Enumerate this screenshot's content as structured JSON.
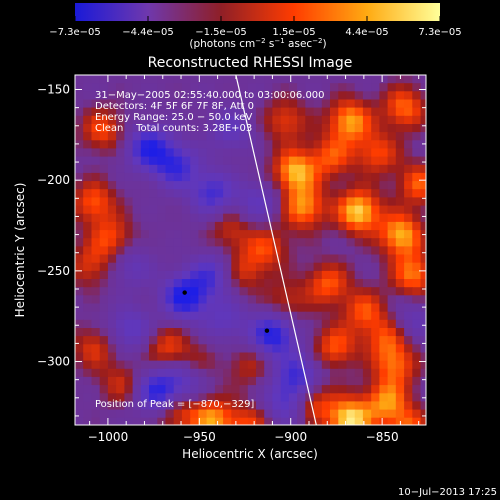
{
  "chart_data": {
    "type": "heatmap",
    "title": "Reconstructed RHESSI Image",
    "xlabel": "Heliocentric X (arcsec)",
    "ylabel": "Heliocentric Y (arcsec)",
    "xlim": [
      -1018,
      -826
    ],
    "ylim": [
      -335,
      -142
    ],
    "x_ticks": [
      -1000,
      -950,
      -900,
      -850
    ],
    "x_tick_labels": [
      "−1000",
      "−950",
      "−900",
      "−850"
    ],
    "y_ticks": [
      -150,
      -200,
      -250,
      -300
    ],
    "y_tick_labels": [
      "−150",
      "−200",
      "−250",
      "−300"
    ],
    "colorbar": {
      "range": [
        -7.3e-05,
        7.3e-05
      ],
      "tick_labels": [
        "−7.3e−05",
        "−4.4e−05",
        "−1.5e−05",
        "1.5e−05",
        "4.4e−05",
        "7.3e−05"
      ],
      "units_main": "(photons cm",
      "units_exp1": "−2",
      "units_mid": " s",
      "units_exp2": "−1",
      "units_end": " asec",
      "units_exp3": "−2",
      "units_close": ")",
      "colors": [
        "#1a1ad8",
        "#6f38ad",
        "#8f1f27",
        "#ff3c00",
        "#ffaa12",
        "#ffff9a"
      ]
    },
    "info_lines": [
      "31−May−2005 02:55:40.000 to 03:00:06.000",
      "Detectors: 4F 5F 6F 7F 8F, Att 0",
      "Energy Range: 25.0 − 50.0 keV",
      "Clean    Total counts: 3.28E+03"
    ],
    "peak_label": "Position of Peak = [−870,−329]",
    "peak": [
      -870,
      -329
    ],
    "limb_line": [
      [
        -930,
        -142
      ],
      [
        -886,
        -335
      ]
    ],
    "markers": [
      [
        -958,
        -262
      ],
      [
        -913,
        -283
      ]
    ],
    "blobs": [
      {
        "x": -865,
        "y": -215,
        "v": 0.95
      },
      {
        "x": -842,
        "y": -228,
        "v": 0.85
      },
      {
        "x": -835,
        "y": -250,
        "v": 0.7
      },
      {
        "x": -900,
        "y": -193,
        "v": 0.85
      },
      {
        "x": -895,
        "y": -213,
        "v": 0.75
      },
      {
        "x": -870,
        "y": -165,
        "v": 0.8
      },
      {
        "x": -880,
        "y": -185,
        "v": 0.55
      },
      {
        "x": -840,
        "y": -158,
        "v": 0.65
      },
      {
        "x": -855,
        "y": -183,
        "v": 0.55
      },
      {
        "x": -832,
        "y": -200,
        "v": 0.6
      },
      {
        "x": -882,
        "y": -255,
        "v": 0.6
      },
      {
        "x": -862,
        "y": -270,
        "v": 0.55
      },
      {
        "x": -878,
        "y": -290,
        "v": 0.6
      },
      {
        "x": -845,
        "y": -300,
        "v": 0.6
      },
      {
        "x": -850,
        "y": -285,
        "v": 0.5
      },
      {
        "x": -870,
        "y": -330,
        "v": 1.0
      },
      {
        "x": -850,
        "y": -320,
        "v": 0.7
      },
      {
        "x": -890,
        "y": -320,
        "v": 0.55
      },
      {
        "x": -838,
        "y": -335,
        "v": 0.6
      },
      {
        "x": -945,
        "y": -330,
        "v": 0.75
      },
      {
        "x": -965,
        "y": -325,
        "v": 0.55
      },
      {
        "x": -925,
        "y": -333,
        "v": 0.5
      },
      {
        "x": -1005,
        "y": -170,
        "v": 0.55
      },
      {
        "x": -1010,
        "y": -210,
        "v": 0.6
      },
      {
        "x": -1000,
        "y": -230,
        "v": 0.55
      },
      {
        "x": -1012,
        "y": -245,
        "v": 0.45
      },
      {
        "x": -1010,
        "y": -290,
        "v": 0.45
      },
      {
        "x": -995,
        "y": -310,
        "v": 0.4
      },
      {
        "x": -915,
        "y": -235,
        "v": 0.5
      },
      {
        "x": -928,
        "y": -248,
        "v": 0.45
      },
      {
        "x": -935,
        "y": -225,
        "v": 0.4
      },
      {
        "x": -905,
        "y": -265,
        "v": 0.4
      },
      {
        "x": -905,
        "y": -165,
        "v": 0.5
      },
      {
        "x": -970,
        "y": -290,
        "v": 0.5
      },
      {
        "x": -955,
        "y": -300,
        "v": 0.35
      },
      {
        "x": -925,
        "y": -300,
        "v": 0.35
      },
      {
        "x": -980,
        "y": -180,
        "v": -0.85
      },
      {
        "x": -965,
        "y": -190,
        "v": -0.75
      },
      {
        "x": -945,
        "y": -205,
        "v": -0.7
      },
      {
        "x": -960,
        "y": -262,
        "v": -1.0
      },
      {
        "x": -945,
        "y": -250,
        "v": -0.6
      },
      {
        "x": -912,
        "y": -283,
        "v": -0.95
      },
      {
        "x": -975,
        "y": -315,
        "v": -0.9
      },
      {
        "x": -960,
        "y": -308,
        "v": -0.6
      },
      {
        "x": -990,
        "y": -280,
        "v": -0.55
      },
      {
        "x": -920,
        "y": -210,
        "v": -0.45
      },
      {
        "x": -935,
        "y": -170,
        "v": -0.45
      },
      {
        "x": -990,
        "y": -245,
        "v": -0.4
      },
      {
        "x": -938,
        "y": -275,
        "v": -0.45
      },
      {
        "x": -898,
        "y": -305,
        "v": -0.7
      },
      {
        "x": -905,
        "y": -320,
        "v": -0.6
      },
      {
        "x": -835,
        "y": -275,
        "v": -0.35
      }
    ]
  },
  "footer": {
    "timestamp": "10−Jul−2013 17:25"
  }
}
